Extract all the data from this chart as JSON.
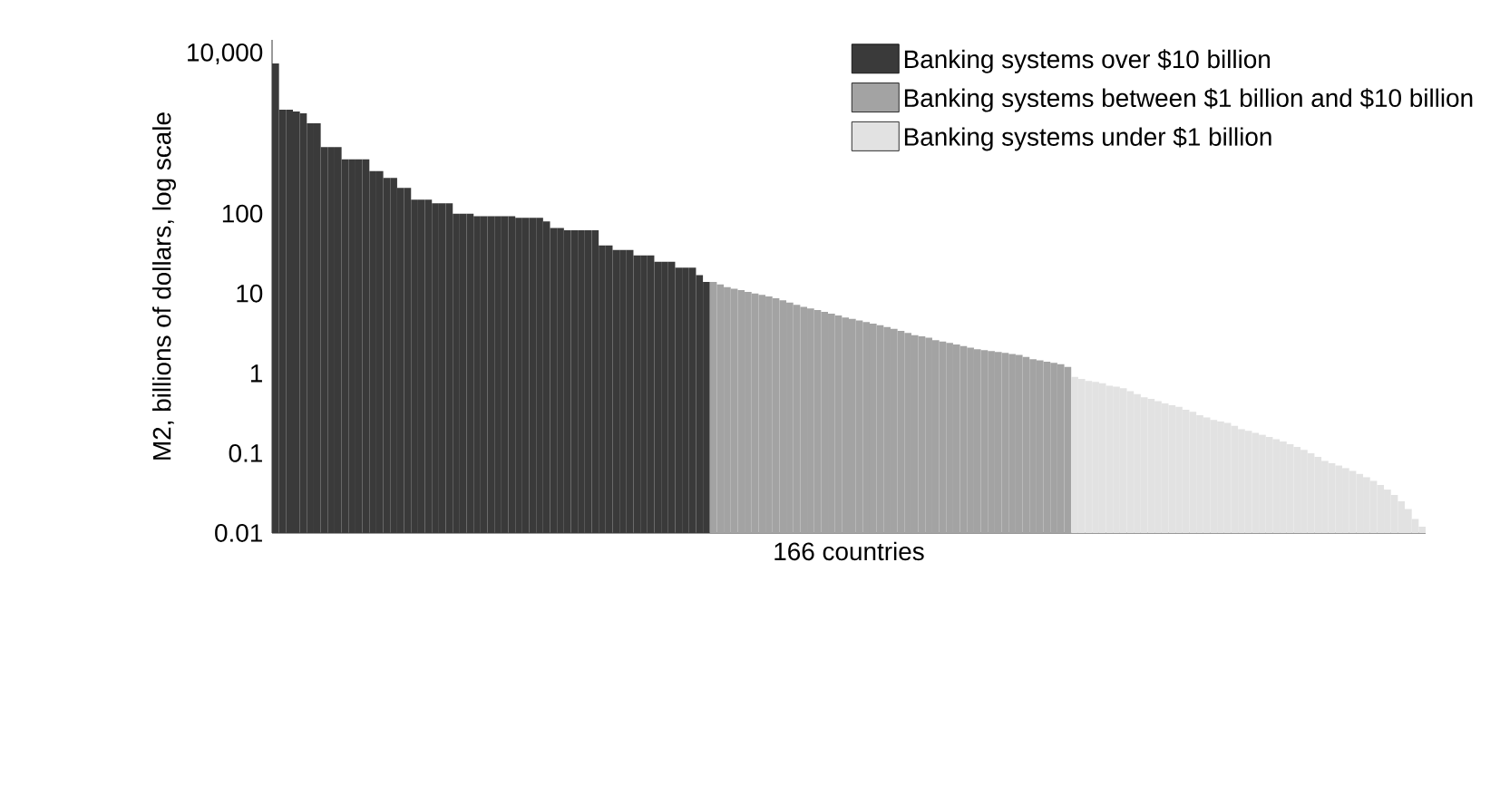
{
  "chart_data": {
    "type": "bar",
    "xlabel": "166 countries",
    "ylabel": "M2, billions of dollars, log scale",
    "log": "y",
    "legend": "top right",
    "tick_labels": "y",
    "ylim": [
      0.01,
      15000
    ],
    "yticks": [
      0.01,
      0.1,
      1,
      10,
      100,
      {
        "value": 10000,
        "label": "10,000"
      }
    ],
    "categories": [
      null,
      null,
      null,
      null,
      null,
      null,
      null,
      null,
      null,
      null,
      null,
      null,
      null,
      null,
      null,
      null,
      null,
      null,
      null,
      null,
      null,
      null,
      null,
      null,
      null,
      null,
      null,
      null,
      null,
      null,
      null,
      null,
      null,
      null,
      null,
      null,
      null,
      null,
      null,
      null,
      null,
      null,
      null,
      null,
      null,
      null,
      null,
      null,
      null,
      null,
      null,
      null,
      null,
      null,
      null,
      null,
      null,
      null,
      null,
      null,
      null,
      null,
      null,
      null,
      null,
      null,
      null,
      null,
      null,
      null,
      null,
      null,
      null,
      null,
      null,
      null,
      null,
      null,
      null,
      null,
      null,
      null,
      null,
      null,
      null,
      null,
      null,
      null,
      null,
      null,
      null,
      null,
      null,
      null,
      null,
      null,
      null,
      null,
      null,
      null,
      null,
      null,
      null,
      null,
      null,
      null,
      null,
      null,
      null,
      null,
      null,
      null,
      null,
      null,
      null,
      null,
      null,
      null,
      null,
      null,
      null,
      null,
      null,
      null,
      null,
      null,
      null,
      null,
      null,
      null,
      null,
      null,
      null,
      null,
      null,
      null,
      null,
      null,
      null,
      null,
      null,
      null,
      null,
      null,
      null,
      null,
      null,
      null,
      null,
      null,
      null,
      null,
      null,
      null,
      null,
      null,
      null,
      null,
      null,
      null,
      null,
      null,
      null,
      null,
      null,
      null
    ],
    "series": [
      {
        "name": "Banking systems over $10 billion",
        "color": "#3a3a3a",
        "values": [
          7600,
          2000,
          2000,
          1900,
          1800,
          1350,
          1350,
          680,
          680,
          680,
          480,
          480,
          480,
          480,
          340,
          340,
          280,
          280,
          210,
          210,
          150,
          150,
          150,
          135,
          135,
          135,
          100,
          100,
          100,
          93,
          93,
          93,
          93,
          93,
          93,
          89,
          89,
          89,
          89,
          80,
          66,
          66,
          62,
          62,
          62,
          62,
          62,
          40,
          40,
          35,
          35,
          35,
          30,
          30,
          30,
          25,
          25,
          25,
          21,
          21,
          21,
          17,
          14,
          null,
          null,
          null,
          null,
          null,
          null,
          null,
          null,
          null,
          null,
          null,
          null,
          null,
          null,
          null,
          null,
          null,
          null,
          null,
          null,
          null,
          null,
          null,
          null,
          null,
          null,
          null,
          null,
          null,
          null,
          null,
          null,
          null,
          null,
          null,
          null,
          null,
          null,
          null,
          null,
          null,
          null,
          null,
          null,
          null,
          null,
          null,
          null,
          null,
          null,
          null,
          null,
          null,
          null,
          null,
          null,
          null,
          null,
          null,
          null,
          null,
          null,
          null,
          null,
          null,
          null,
          null,
          null,
          null,
          null,
          null,
          null,
          null,
          null,
          null,
          null,
          null,
          null,
          null,
          null,
          null,
          null,
          null,
          null,
          null,
          null,
          null,
          null,
          null,
          null,
          null,
          null,
          null,
          null,
          null,
          null,
          null,
          null,
          null,
          null,
          null,
          null,
          null
        ]
      },
      {
        "name": "Banking systems between $1 billion and $10 billion",
        "color": "#a3a3a3",
        "values": [
          null,
          null,
          null,
          null,
          null,
          null,
          null,
          null,
          null,
          null,
          null,
          null,
          null,
          null,
          null,
          null,
          null,
          null,
          null,
          null,
          null,
          null,
          null,
          null,
          null,
          null,
          null,
          null,
          null,
          null,
          null,
          null,
          null,
          null,
          null,
          null,
          null,
          null,
          null,
          null,
          null,
          null,
          null,
          null,
          null,
          null,
          null,
          null,
          null,
          null,
          null,
          null,
          null,
          null,
          null,
          null,
          null,
          null,
          null,
          null,
          null,
          null,
          null,
          14,
          13,
          12,
          11.5,
          11,
          10.5,
          10,
          9.6,
          9.2,
          8.7,
          8.2,
          7.7,
          7.2,
          6.8,
          6.5,
          6.2,
          5.9,
          5.6,
          5.3,
          5,
          4.8,
          4.6,
          4.4,
          4.2,
          4,
          3.8,
          3.6,
          3.4,
          3.2,
          3,
          2.9,
          2.8,
          2.6,
          2.5,
          2.4,
          2.3,
          2.2,
          2.1,
          2,
          1.95,
          1.9,
          1.85,
          1.8,
          1.75,
          1.7,
          1.6,
          1.5,
          1.45,
          1.4,
          1.35,
          1.3,
          1.2,
          null,
          null,
          null,
          null,
          null,
          null,
          null,
          null,
          null,
          null,
          null,
          null,
          null,
          null,
          null,
          null,
          null,
          null,
          null,
          null,
          null,
          null,
          null,
          null,
          null,
          null,
          null,
          null,
          null,
          null,
          null,
          null,
          null,
          null,
          null,
          null,
          null,
          null,
          null,
          null,
          null,
          null,
          null,
          null,
          null,
          null,
          null,
          null,
          null,
          null,
          null
        ]
      },
      {
        "name": "Banking systems under $1 billion",
        "color": "#e2e2e2",
        "values": [
          null,
          null,
          null,
          null,
          null,
          null,
          null,
          null,
          null,
          null,
          null,
          null,
          null,
          null,
          null,
          null,
          null,
          null,
          null,
          null,
          null,
          null,
          null,
          null,
          null,
          null,
          null,
          null,
          null,
          null,
          null,
          null,
          null,
          null,
          null,
          null,
          null,
          null,
          null,
          null,
          null,
          null,
          null,
          null,
          null,
          null,
          null,
          null,
          null,
          null,
          null,
          null,
          null,
          null,
          null,
          null,
          null,
          null,
          null,
          null,
          null,
          null,
          null,
          null,
          null,
          null,
          null,
          null,
          null,
          null,
          null,
          null,
          null,
          null,
          null,
          null,
          null,
          null,
          null,
          null,
          null,
          null,
          null,
          null,
          null,
          null,
          null,
          null,
          null,
          null,
          null,
          null,
          null,
          null,
          null,
          null,
          null,
          null,
          null,
          null,
          null,
          null,
          null,
          null,
          null,
          null,
          null,
          null,
          null,
          null,
          null,
          null,
          null,
          null,
          null,
          0.9,
          0.85,
          0.8,
          0.78,
          0.75,
          0.7,
          0.68,
          0.65,
          0.6,
          0.55,
          0.5,
          0.48,
          0.45,
          0.42,
          0.4,
          0.38,
          0.35,
          0.33,
          0.3,
          0.28,
          0.26,
          0.25,
          0.24,
          0.22,
          0.2,
          0.19,
          0.18,
          0.17,
          0.16,
          0.15,
          0.14,
          0.13,
          0.12,
          0.11,
          0.1,
          0.09,
          0.08,
          0.075,
          0.07,
          0.065,
          0.06,
          0.055,
          0.05,
          0.045,
          0.04,
          0.035,
          0.03,
          0.025,
          0.02,
          0.015,
          0.012
        ]
      }
    ]
  }
}
